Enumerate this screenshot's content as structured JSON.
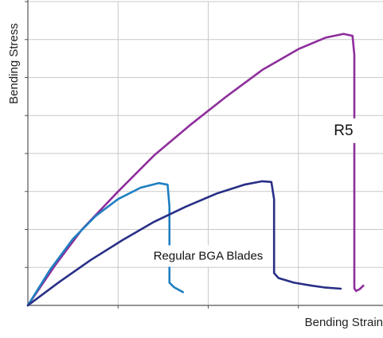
{
  "chart_data": {
    "type": "line",
    "xlabel": "Bending Strain",
    "ylabel": "Bending Stress",
    "xlim": [
      0,
      4
    ],
    "ylim": [
      0,
      8
    ],
    "grid": true,
    "legend": "none",
    "x_ticks_labeled": false,
    "y_ticks_labeled": false,
    "annotations": [
      {
        "text": "R5",
        "x": 3.5,
        "y": 4.6,
        "boxed": true
      },
      {
        "text": "Regular BGA Blades",
        "x": 2.0,
        "y": 1.3,
        "boxed": true
      }
    ],
    "series": [
      {
        "name": "R5",
        "color": "#8e2e9c",
        "points": [
          [
            0,
            0
          ],
          [
            0.3,
            1.05
          ],
          [
            0.6,
            2.0
          ],
          [
            1.0,
            3.0
          ],
          [
            1.4,
            3.95
          ],
          [
            1.8,
            4.75
          ],
          [
            2.2,
            5.5
          ],
          [
            2.6,
            6.2
          ],
          [
            3.0,
            6.75
          ],
          [
            3.3,
            7.05
          ],
          [
            3.5,
            7.15
          ],
          [
            3.6,
            7.1
          ],
          [
            3.62,
            6.6
          ],
          [
            3.62,
            2.0
          ],
          [
            3.62,
            0.45
          ],
          [
            3.64,
            0.38
          ],
          [
            3.68,
            0.43
          ],
          [
            3.72,
            0.52
          ]
        ]
      },
      {
        "name": "Regular BGA Blades",
        "color": "#1f7fc1",
        "points": [
          [
            0,
            0
          ],
          [
            0.25,
            0.95
          ],
          [
            0.5,
            1.75
          ],
          [
            0.75,
            2.35
          ],
          [
            1.0,
            2.8
          ],
          [
            1.25,
            3.1
          ],
          [
            1.45,
            3.22
          ],
          [
            1.55,
            3.18
          ],
          [
            1.57,
            2.6
          ],
          [
            1.57,
            1.5
          ],
          [
            1.57,
            0.6
          ],
          [
            1.62,
            0.48
          ],
          [
            1.72,
            0.35
          ]
        ]
      },
      {
        "name": "Regular BGA Blades",
        "color": "#282f86",
        "points": [
          [
            0,
            0
          ],
          [
            0.35,
            0.62
          ],
          [
            0.7,
            1.2
          ],
          [
            1.05,
            1.72
          ],
          [
            1.4,
            2.2
          ],
          [
            1.75,
            2.6
          ],
          [
            2.1,
            2.95
          ],
          [
            2.4,
            3.18
          ],
          [
            2.6,
            3.27
          ],
          [
            2.7,
            3.25
          ],
          [
            2.73,
            2.8
          ],
          [
            2.73,
            1.5
          ],
          [
            2.73,
            0.85
          ],
          [
            2.78,
            0.72
          ],
          [
            2.95,
            0.6
          ],
          [
            3.15,
            0.52
          ],
          [
            3.3,
            0.47
          ],
          [
            3.47,
            0.44
          ]
        ]
      }
    ]
  }
}
